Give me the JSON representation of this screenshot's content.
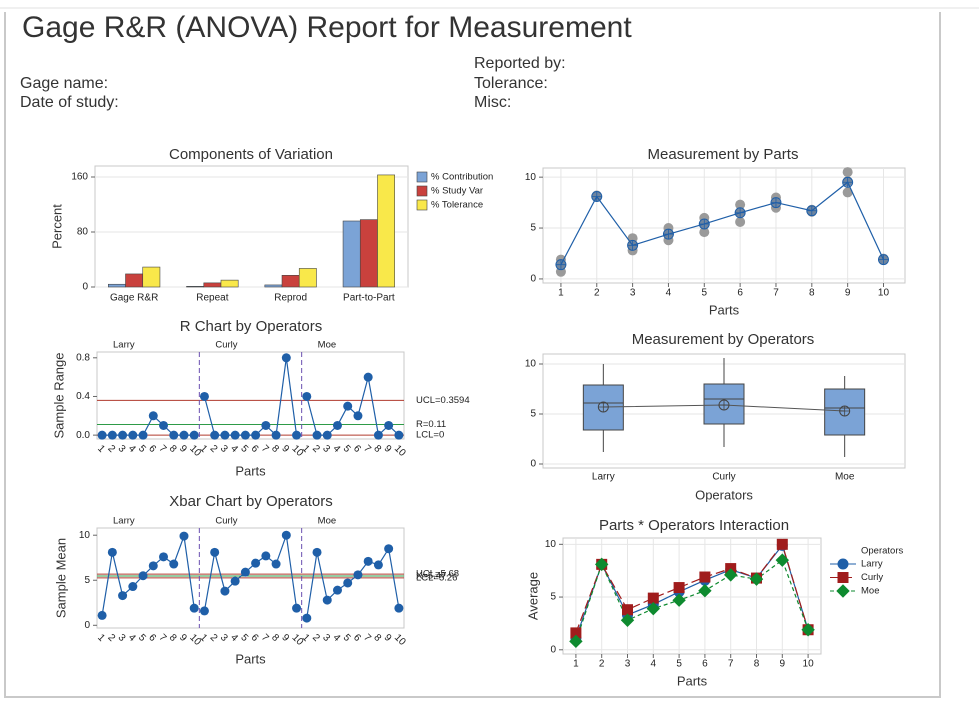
{
  "header": {
    "title": "Gage R&R (ANOVA) Report for Measurement",
    "left_fields": [
      "Gage name:",
      "Date of study:"
    ],
    "right_fields": [
      "Reported by:",
      "Tolerance:",
      "Misc:"
    ]
  },
  "chart_data": [
    {
      "type": "bar",
      "title": "Components of Variation",
      "y_label": "Percent",
      "categories": [
        "Gage R&R",
        "Repeat",
        "Reprod",
        "Part-to-Part"
      ],
      "series": [
        {
          "name": "% Contribution",
          "color": "#7ba3d6",
          "values": [
            4,
            1,
            3,
            96
          ]
        },
        {
          "name": "% Study Var",
          "color": "#c9413d",
          "values": [
            19,
            6,
            17,
            98
          ]
        },
        {
          "name": "% Tolerance",
          "color": "#f9e84a",
          "values": [
            29,
            10,
            27,
            163
          ]
        }
      ],
      "ylim": [
        0,
        176
      ],
      "yticks": [
        0,
        80,
        160
      ],
      "grid": true
    },
    {
      "type": "control",
      "title": "R Chart by Operators",
      "x_label": "Parts",
      "y_label": "Sample Range",
      "categories": [
        "1",
        "2",
        "3",
        "4",
        "5",
        "6",
        "7",
        "8",
        "9",
        "10"
      ],
      "series": [
        {
          "name": "Larry",
          "color": "#1f5fa8",
          "values": [
            0,
            0,
            0,
            0,
            0,
            0.2,
            0.1,
            0,
            0,
            0
          ]
        },
        {
          "name": "Curly",
          "color": "#1f5fa8",
          "values": [
            0.4,
            0,
            0,
            0,
            0,
            0,
            0.1,
            0,
            0.8,
            0
          ]
        },
        {
          "name": "Moe",
          "color": "#1f5fa8",
          "values": [
            0.4,
            0,
            0,
            0.1,
            0.3,
            0.2,
            0.6,
            0,
            0.1,
            0
          ]
        }
      ],
      "limits": [
        {
          "label": "UCL=0.3594",
          "value": 0.3594,
          "color": "#b03a2e"
        },
        {
          "label": "R=0.11",
          "value": 0.11,
          "color": "#2e9b47"
        },
        {
          "label": "LCL=0",
          "value": 0,
          "color": "#b03a2e"
        }
      ],
      "ylim": [
        -0.04,
        0.86
      ],
      "yticks": [
        {
          "value": 0,
          "label": "0.0"
        },
        0.4,
        0.8
      ],
      "grid": false
    },
    {
      "type": "control",
      "title": "Xbar Chart by Operators",
      "x_label": "Parts",
      "y_label": "Sample Mean",
      "categories": [
        "1",
        "2",
        "3",
        "4",
        "5",
        "6",
        "7",
        "8",
        "9",
        "10"
      ],
      "series": [
        {
          "name": "Larry",
          "color": "#1f5fa8",
          "values": [
            1.1,
            8.1,
            3.3,
            4.3,
            5.5,
            6.6,
            7.6,
            6.8,
            9.9,
            1.9
          ]
        },
        {
          "name": "Curly",
          "color": "#1f5fa8",
          "values": [
            1.6,
            8.1,
            3.8,
            4.9,
            5.9,
            6.9,
            7.7,
            6.8,
            10.0,
            1.9
          ]
        },
        {
          "name": "Moe",
          "color": "#1f5fa8",
          "values": [
            0.8,
            8.1,
            2.8,
            3.9,
            4.7,
            5.6,
            7.1,
            6.7,
            8.5,
            1.9
          ]
        }
      ],
      "limits": [
        {
          "label": "UCL=5.68",
          "value": 5.68,
          "color": "#b03a2e"
        },
        {
          "label": "X=5.47",
          "value": 5.47,
          "color": "#2e9b47"
        },
        {
          "label": "LCL=5.26",
          "value": 5.26,
          "color": "#b03a2e"
        }
      ],
      "ylim": [
        -0.3,
        10.8
      ],
      "yticks": [
        0,
        5,
        10
      ],
      "grid": false
    },
    {
      "type": "scatter",
      "title": "Measurement by Parts",
      "x_label": "Parts",
      "x": [
        1,
        2,
        3,
        4,
        5,
        6,
        7,
        8,
        9,
        10
      ],
      "observations": [
        [
          0.7,
          1.3,
          1.9
        ],
        [
          8.1,
          8.1,
          8.2
        ],
        [
          2.8,
          3.4,
          4.0
        ],
        [
          3.8,
          4.4,
          5.0
        ],
        [
          4.6,
          5.4,
          6.0
        ],
        [
          5.6,
          6.5,
          7.3
        ],
        [
          7.0,
          7.6,
          8.0
        ],
        [
          6.6,
          6.7,
          6.8
        ],
        [
          8.5,
          9.6,
          10.5
        ],
        [
          1.9,
          1.9,
          2.0
        ]
      ],
      "observation_color": "#9a9a9a",
      "means": [
        1.4,
        8.1,
        3.3,
        4.4,
        5.4,
        6.5,
        7.5,
        6.7,
        9.5,
        1.9
      ],
      "color": "#1f5fa8",
      "xlim": [
        0.5,
        10.6
      ],
      "xticks": [
        1,
        2,
        3,
        4,
        5,
        6,
        7,
        8,
        9,
        10
      ],
      "ylim": [
        -0.4,
        10.9
      ],
      "yticks": [
        0,
        5,
        10
      ],
      "grid": true
    },
    {
      "type": "box",
      "title": "Measurement by Operators",
      "x_label": "Operators",
      "categories": [
        "Larry",
        "Curly",
        "Moe"
      ],
      "boxes": [
        {
          "min": 1.2,
          "q1": 3.4,
          "median": 6.1,
          "q3": 7.9,
          "max": 10.0,
          "mean": 5.7
        },
        {
          "min": 1.7,
          "q1": 4.0,
          "median": 6.5,
          "q3": 8.0,
          "max": 10.6,
          "mean": 5.9
        },
        {
          "min": 0.7,
          "q1": 2.9,
          "median": 5.6,
          "q3": 7.5,
          "max": 8.8,
          "mean": 5.3
        }
      ],
      "color": "#7ba3d6",
      "ylim": [
        -0.4,
        11
      ],
      "yticks": [
        0,
        5,
        10
      ],
      "grid": true
    },
    {
      "type": "line",
      "title": "Parts * Operators Interaction",
      "x_label": "Parts",
      "y_label": "Average",
      "legend_title": "Operators",
      "x": [
        1,
        2,
        3,
        4,
        5,
        6,
        7,
        8,
        9,
        10
      ],
      "series": [
        {
          "name": "Larry",
          "color": "#1f5fa8",
          "marker": "circle",
          "dash": "none",
          "values": [
            1.1,
            8.1,
            3.3,
            4.3,
            5.5,
            6.6,
            7.6,
            6.8,
            9.9,
            1.9
          ]
        },
        {
          "name": "Curly",
          "color": "#a01c1c",
          "marker": "square",
          "dash": "9 4",
          "values": [
            1.6,
            8.1,
            3.8,
            4.9,
            5.9,
            6.9,
            7.7,
            6.8,
            10.0,
            1.9
          ]
        },
        {
          "name": "Moe",
          "color": "#0e8a2f",
          "marker": "diamond",
          "dash": "4 3",
          "values": [
            0.8,
            8.1,
            2.8,
            3.9,
            4.7,
            5.6,
            7.1,
            6.7,
            8.5,
            1.9
          ]
        }
      ],
      "xlim": [
        0.5,
        10.5
      ],
      "xticks": [
        1,
        2,
        3,
        4,
        5,
        6,
        7,
        8,
        9,
        10
      ],
      "ylim": [
        -0.4,
        10.6
      ],
      "yticks": [
        0,
        5,
        10
      ],
      "grid": true
    }
  ]
}
